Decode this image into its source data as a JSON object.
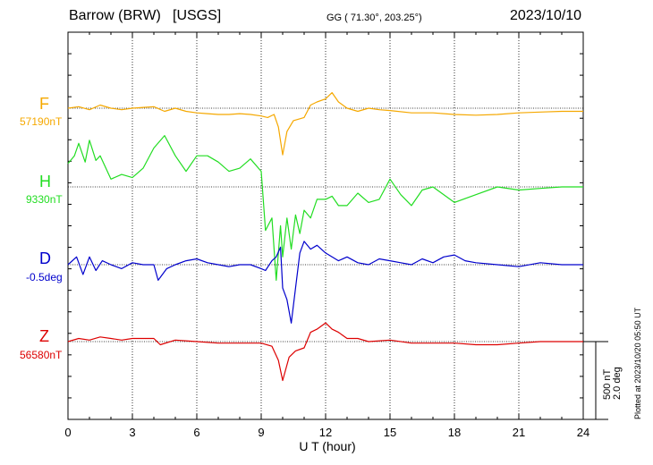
{
  "header": {
    "station": "Barrow (BRW)",
    "source": "[USGS]",
    "coords": "GG ( 71.30°, 203.25°)",
    "date": "2023/10/10"
  },
  "plot_note": "Plotted at 2023/10/20 05:50 UT",
  "scale": {
    "nT": "500 nT",
    "deg": "2.0 deg"
  },
  "colors": {
    "F": "#f5a800",
    "H": "#22dd22",
    "D": "#0000cc",
    "Z": "#dd0000"
  },
  "chart_data": {
    "type": "line",
    "xlabel": "U T (hour)",
    "xlim": [
      0,
      24
    ],
    "x_ticks": [
      "0",
      "3",
      "6",
      "9",
      "12",
      "15",
      "18",
      "21",
      "24"
    ],
    "grid": true,
    "series": [
      {
        "name": "F",
        "baseline": "57190nT",
        "unit": "nT",
        "x": [
          0,
          0.5,
          1,
          1.5,
          2,
          2.5,
          3,
          3.5,
          4,
          4.5,
          5,
          5.5,
          6,
          6.5,
          7,
          7.5,
          8,
          8.5,
          9,
          9.3,
          9.6,
          9.8,
          10,
          10.2,
          10.5,
          11,
          11.3,
          11.6,
          12,
          12.3,
          12.6,
          13,
          13.5,
          14,
          14.5,
          15,
          16,
          17,
          18,
          19,
          20,
          21,
          22,
          23,
          24
        ],
        "values": [
          0,
          10,
          -10,
          20,
          0,
          -10,
          0,
          5,
          10,
          -20,
          0,
          -20,
          -30,
          -35,
          -40,
          -40,
          -35,
          -40,
          -50,
          -60,
          -40,
          -120,
          -300,
          -150,
          -80,
          -60,
          20,
          40,
          60,
          100,
          40,
          0,
          -20,
          0,
          -10,
          -15,
          -30,
          -30,
          -40,
          -45,
          -40,
          -30,
          -25,
          -20,
          -20
        ]
      },
      {
        "name": "H",
        "baseline": "9330nT",
        "unit": "nT",
        "x": [
          0,
          0.3,
          0.5,
          0.8,
          1,
          1.3,
          1.5,
          2,
          2.5,
          3,
          3.5,
          4,
          4.5,
          5,
          5.5,
          6,
          6.5,
          7,
          7.5,
          8,
          8.5,
          9,
          9.2,
          9.5,
          9.7,
          9.9,
          10,
          10.2,
          10.4,
          10.6,
          10.8,
          11,
          11.3,
          11.6,
          12,
          12.3,
          12.6,
          13,
          13.5,
          14,
          14.5,
          15,
          15.5,
          16,
          16.5,
          17,
          18,
          19,
          20,
          21,
          22,
          23,
          24
        ],
        "values": [
          150,
          200,
          280,
          160,
          300,
          170,
          200,
          50,
          80,
          60,
          120,
          250,
          330,
          200,
          100,
          200,
          200,
          160,
          100,
          120,
          180,
          100,
          -280,
          -200,
          -600,
          -250,
          -450,
          -200,
          -400,
          -180,
          -300,
          -150,
          -200,
          -80,
          -80,
          -60,
          -120,
          -120,
          -40,
          -100,
          -80,
          50,
          -50,
          -120,
          -20,
          0,
          -100,
          -50,
          0,
          -20,
          -10,
          0,
          0
        ]
      },
      {
        "name": "D",
        "baseline": "-0.5deg",
        "unit": "deg",
        "x": [
          0,
          0.4,
          0.7,
          1,
          1.3,
          1.6,
          2,
          2.5,
          3,
          3.5,
          4,
          4.2,
          4.6,
          5,
          5.5,
          6,
          6.5,
          7,
          7.5,
          8,
          8.5,
          9,
          9.2,
          9.5,
          9.7,
          9.9,
          10,
          10.2,
          10.4,
          10.6,
          10.8,
          11,
          11.3,
          11.6,
          12,
          12.3,
          12.6,
          13,
          13.5,
          14,
          14.5,
          15,
          15.5,
          16,
          16.5,
          17,
          17.5,
          18,
          18.5,
          19,
          20,
          21,
          22,
          23,
          24
        ],
        "values": [
          0,
          0.2,
          -0.25,
          0.2,
          -0.15,
          0.1,
          0,
          -0.1,
          0.05,
          0,
          0,
          -0.4,
          -0.1,
          0,
          0.1,
          0.15,
          0.05,
          0,
          -0.05,
          0,
          0,
          -0.1,
          -0.15,
          0.1,
          0.2,
          0.45,
          -0.6,
          -0.9,
          -1.5,
          -0.6,
          0.3,
          0.6,
          0.4,
          0.5,
          0.3,
          0.2,
          0.1,
          0.2,
          0.05,
          0,
          0.15,
          0.1,
          0.05,
          0,
          0.15,
          0.05,
          0.2,
          0.25,
          0.1,
          0.05,
          0,
          -0.05,
          0.05,
          0,
          0
        ]
      },
      {
        "name": "Z",
        "baseline": "56580nT",
        "unit": "nT",
        "x": [
          0,
          0.5,
          1,
          1.5,
          2,
          2.5,
          3,
          4,
          4.3,
          5,
          6,
          7,
          8,
          9,
          9.5,
          9.8,
          10,
          10.3,
          10.6,
          11,
          11.3,
          11.6,
          12,
          12.3,
          12.6,
          13,
          13.5,
          14,
          15,
          16,
          17,
          18,
          19,
          20,
          21,
          22,
          23,
          24
        ],
        "values": [
          0,
          20,
          10,
          30,
          20,
          10,
          20,
          20,
          -20,
          10,
          0,
          -10,
          -10,
          -10,
          -30,
          -120,
          -250,
          -100,
          -60,
          -40,
          60,
          80,
          120,
          80,
          60,
          20,
          20,
          0,
          10,
          -10,
          -10,
          -10,
          -20,
          -20,
          -10,
          0,
          0,
          0
        ]
      }
    ]
  }
}
